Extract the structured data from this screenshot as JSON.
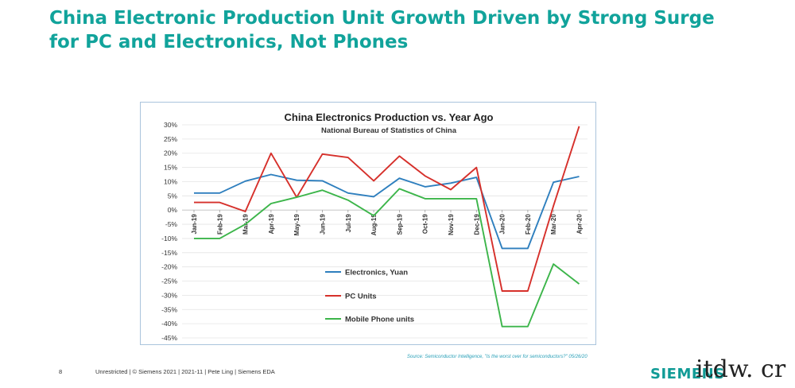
{
  "slide": {
    "title": "China Electronic Production Unit Growth Driven by Strong Surge for PC and Electronics, Not Phones",
    "source_note": "Source: Semiconductor Intelligence, \"Is the worst over for semiconductors?\" 05/26/20",
    "page_number": "8",
    "footer": "Unrestricted | © Siemens 2021 | 2021-11 | Pete Ling | Siemens EDA",
    "logo": "SIEMENS",
    "watermark": "itdw. cr"
  },
  "chart_data": {
    "type": "line",
    "title": "China Electronics Production vs. Year Ago",
    "subtitle": "National Bureau of Statistics of China",
    "categories": [
      "Jan-19",
      "Feb-19",
      "Mar-19",
      "Apr-19",
      "May-19",
      "Jun-19",
      "Jul-19",
      "Aug-19",
      "Sep-19",
      "Oct-19",
      "Nov-19",
      "Dec-19",
      "Jan-20",
      "Feb-20",
      "Mar-20",
      "Apr-20"
    ],
    "ylim": [
      -45,
      30
    ],
    "yticks": [
      "30%",
      "25%",
      "20%",
      "15%",
      "10%",
      "5%",
      "0%",
      "-5%",
      "-10%",
      "-15%",
      "-20%",
      "-25%",
      "-30%",
      "-35%",
      "-40%",
      "-45%"
    ],
    "ytick_values": [
      30,
      25,
      20,
      15,
      10,
      5,
      0,
      -5,
      -10,
      -15,
      -20,
      -25,
      -30,
      -35,
      -40,
      -45
    ],
    "grid": true,
    "legend_placement": "center",
    "series": [
      {
        "name": "Electronics, Yuan",
        "color": "#2e7fbe",
        "values": [
          6,
          6,
          10.2,
          12.5,
          10.5,
          10.3,
          6,
          4.7,
          11.2,
          8.2,
          9.5,
          11.5,
          -13.5,
          -13.5,
          9.8,
          11.8
        ]
      },
      {
        "name": "PC Units",
        "color": "#d6302b",
        "values": [
          2.7,
          2.7,
          -0.5,
          20,
          4.5,
          19.7,
          18.5,
          10.3,
          19,
          12,
          7.2,
          15,
          -28.5,
          -28.5,
          1.5,
          29.5
        ]
      },
      {
        "name": "Mobile Phone units",
        "color": "#3cb54a",
        "values": [
          -10,
          -10,
          -5,
          2.3,
          4.5,
          7,
          3.5,
          -2,
          7.5,
          4,
          4,
          4,
          -41,
          -41,
          -19,
          -26
        ]
      }
    ]
  }
}
